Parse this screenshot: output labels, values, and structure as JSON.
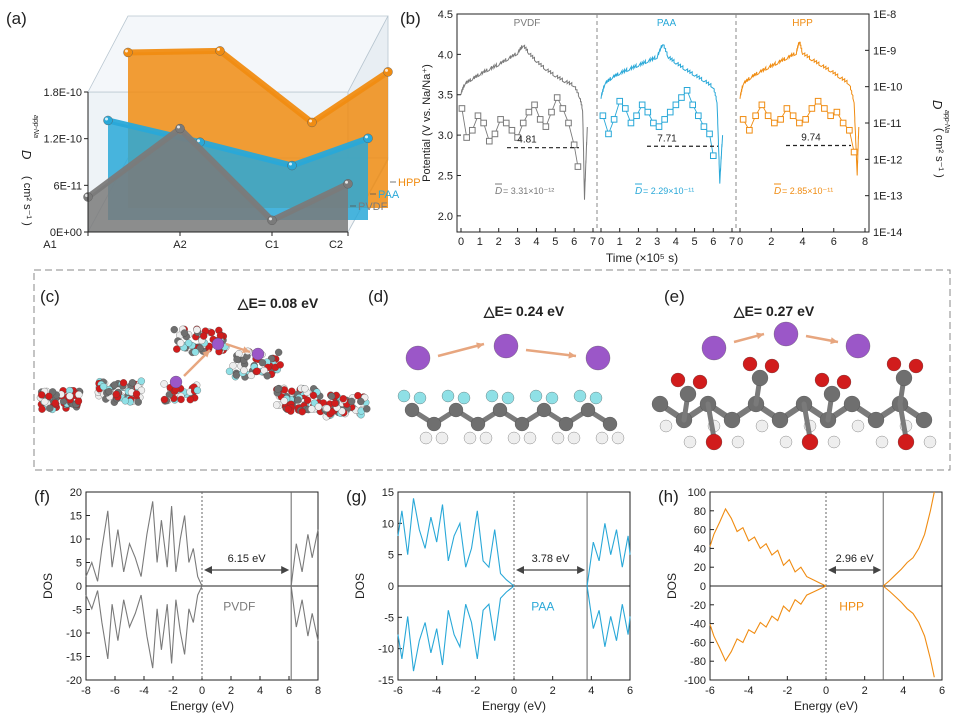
{
  "colors": {
    "pvdf": "#7a7a7a",
    "paa": "#29a8d8",
    "hpp": "#f08c12",
    "axis": "#222222",
    "dashed_box": "#888888"
  },
  "chart_data": [
    {
      "panel": "(a)",
      "type": "area",
      "categories": [
        "A1",
        "A2",
        "C1",
        "C2"
      ],
      "yticks": [
        "0E+00",
        "6E-11",
        "1.2E-10",
        "1.8E-10"
      ],
      "ylabel_main": "D",
      "ylabel_sub": "app-Na",
      "ylabel_unit": "( cm² s⁻¹ )",
      "ylim": [
        0,
        2.2e-10
      ],
      "series": [
        {
          "name": "PVDF",
          "values": [
            4.5e-11,
            1.33e-10,
            1.5e-11,
            6.2e-11
          ]
        },
        {
          "name": "PAA",
          "values": [
            1.28e-10,
            1e-10,
            7e-11,
            1.05e-10
          ]
        },
        {
          "name": "HPP",
          "values": [
            2e-10,
            2.02e-10,
            1.1e-10,
            1.75e-10
          ]
        }
      ]
    },
    {
      "panel": "(b)",
      "type": "line",
      "xlabel": "Time (×10⁵ s)",
      "ylabel_left": "Potential (V vs. Na/Na⁺)",
      "ylabel_right_main": "D",
      "ylabel_right_sub": "app-Na",
      "ylabel_right_unit": "( cm² s⁻¹ )",
      "ylim_left": [
        1.8,
        4.5
      ],
      "ylim_right_log10": [
        -14,
        -8
      ],
      "left_ticks": [
        "2.0",
        "2.5",
        "3.0",
        "3.5",
        "4.0",
        "4.5"
      ],
      "right_ticks": [
        "1E-14",
        "1E-13",
        "1E-12",
        "1E-11",
        "1E-10",
        "1E-9",
        "1E-8"
      ],
      "segments": [
        {
          "name": "PVDF",
          "xticks": [
            "0",
            "1",
            "2",
            "3",
            "4",
            "5",
            "6",
            "7"
          ],
          "xmax": 7.0,
          "avg_label": "4.81",
          "avg_log10": -11.68,
          "D_text": "D",
          "D_value": " = 3.31×10⁻¹²",
          "potential_x": [
            0,
            0.2,
            0.6,
            1.0,
            1.5,
            2.0,
            2.5,
            3.0,
            3.3,
            3.6,
            4.0,
            4.5,
            5.0,
            5.5,
            6.0,
            6.3,
            6.45,
            6.55,
            6.7
          ],
          "potential_y": [
            3.5,
            3.62,
            3.68,
            3.74,
            3.8,
            3.86,
            3.93,
            4.0,
            4.1,
            4.0,
            3.9,
            3.8,
            3.72,
            3.65,
            3.6,
            3.45,
            3.3,
            2.2,
            3.1
          ],
          "D_x": [
            0.05,
            0.3,
            0.6,
            0.9,
            1.2,
            1.5,
            1.8,
            2.1,
            2.4,
            2.7,
            3.0,
            3.3,
            3.6,
            3.9,
            4.2,
            4.5,
            4.8,
            5.1,
            5.4,
            5.7,
            6.0,
            6.2
          ],
          "D_log10": [
            -10.6,
            -11.4,
            -11.2,
            -10.8,
            -11.0,
            -11.5,
            -11.3,
            -10.9,
            -11.0,
            -11.2,
            -11.4,
            -11.0,
            -10.7,
            -10.5,
            -10.9,
            -11.1,
            -10.7,
            -10.3,
            -10.6,
            -11.0,
            -11.6,
            -12.2
          ]
        },
        {
          "name": "PAA",
          "xticks": [
            "0",
            "1",
            "2",
            "3",
            "4",
            "5",
            "6",
            "7"
          ],
          "xmax": 7.0,
          "avg_label": "7.71",
          "avg_log10": -11.64,
          "D_text": "D",
          "D_value": " = 2.29×10⁻¹¹",
          "potential_x": [
            0,
            0.2,
            0.6,
            1.0,
            1.5,
            2.0,
            2.5,
            3.0,
            3.3,
            3.6,
            4.0,
            4.5,
            5.0,
            5.5,
            6.0,
            6.2,
            6.35,
            6.5
          ],
          "potential_y": [
            3.45,
            3.62,
            3.7,
            3.75,
            3.8,
            3.85,
            3.9,
            3.95,
            4.12,
            3.95,
            3.88,
            3.8,
            3.73,
            3.66,
            3.58,
            3.4,
            2.4,
            3.0
          ],
          "D_x": [
            0.1,
            0.4,
            0.7,
            1.0,
            1.3,
            1.6,
            1.9,
            2.2,
            2.5,
            2.8,
            3.1,
            3.4,
            3.7,
            4.0,
            4.3,
            4.6,
            4.9,
            5.2,
            5.5,
            5.8,
            6.0
          ],
          "D_log10": [
            -10.8,
            -11.3,
            -10.9,
            -10.4,
            -10.6,
            -11.0,
            -10.8,
            -10.5,
            -10.7,
            -11.0,
            -11.1,
            -10.9,
            -10.7,
            -10.5,
            -10.3,
            -10.1,
            -10.5,
            -10.8,
            -11.1,
            -11.3,
            -11.9
          ]
        },
        {
          "name": "HPP",
          "xticks": [
            "0",
            "2",
            "4",
            "6",
            "8"
          ],
          "xmax": 8.0,
          "avg_label": "9.74",
          "avg_log10": -11.62,
          "D_text": "D",
          "D_value": " = 2.85×10⁻¹¹",
          "potential_x": [
            0,
            0.2,
            0.7,
            1.2,
            1.8,
            2.4,
            3.0,
            3.6,
            3.8,
            4.0,
            4.6,
            5.2,
            5.8,
            6.4,
            7.0,
            7.3,
            7.5,
            7.6
          ],
          "potential_y": [
            3.45,
            3.62,
            3.7,
            3.76,
            3.82,
            3.88,
            3.94,
            4.0,
            4.15,
            4.0,
            3.92,
            3.85,
            3.78,
            3.7,
            3.62,
            3.4,
            2.5,
            3.1
          ],
          "D_x": [
            0.2,
            0.6,
            1.0,
            1.4,
            1.8,
            2.2,
            2.6,
            3.0,
            3.4,
            3.8,
            4.2,
            4.6,
            5.0,
            5.4,
            5.8,
            6.2,
            6.6,
            7.0,
            7.3
          ],
          "D_log10": [
            -10.9,
            -11.2,
            -10.8,
            -10.5,
            -10.8,
            -11.0,
            -10.9,
            -10.6,
            -10.8,
            -11.0,
            -10.9,
            -10.6,
            -10.4,
            -10.6,
            -10.8,
            -10.7,
            -11.0,
            -11.2,
            -11.8
          ]
        }
      ]
    },
    {
      "panel": "(f)",
      "type": "line",
      "series": [
        {
          "name": "PVDF"
        }
      ],
      "label": "PVDF",
      "xlabel": "Energy (eV)",
      "ylabel": "DOS",
      "xlim": [
        -8,
        8
      ],
      "ylim": [
        -20,
        20
      ],
      "xticks": [
        "-8",
        "-6",
        "-4",
        "-2",
        "0",
        "2",
        "4",
        "6",
        "8"
      ],
      "yticks": [
        "-20",
        "-15",
        "-10",
        "-5",
        "0",
        "5",
        "10",
        "15",
        "20"
      ],
      "gap_label": "6.15 eV",
      "gap_start": 0,
      "gap_end": 6.15,
      "energy": [
        -8,
        -7.6,
        -7.2,
        -6.9,
        -6.5,
        -6.2,
        -5.8,
        -5.4,
        -5.0,
        -4.6,
        -4.2,
        -3.8,
        -3.4,
        -3.1,
        -2.8,
        -2.4,
        -2.1,
        -1.8,
        -1.5,
        -1.2,
        -0.9,
        -0.6,
        -0.3,
        0,
        6.15,
        6.5,
        6.9,
        7.3,
        7.6,
        8
      ],
      "dos": [
        2,
        5,
        1,
        8,
        16,
        4,
        12,
        3,
        9,
        6,
        2,
        11,
        18,
        5,
        14,
        4,
        17,
        3,
        10,
        15,
        5,
        8,
        2,
        0,
        0,
        9,
        3,
        11,
        6,
        12
      ]
    },
    {
      "panel": "(g)",
      "type": "line",
      "series": [
        {
          "name": "PAA"
        }
      ],
      "label": "PAA",
      "xlabel": "Energy (eV)",
      "ylabel": "DOS",
      "xlim": [
        -6,
        6
      ],
      "ylim": [
        -15,
        15
      ],
      "xticks": [
        "-6",
        "-4",
        "-2",
        "0",
        "2",
        "4",
        "6"
      ],
      "yticks": [
        "-15",
        "-10",
        "-5",
        "0",
        "5",
        "10",
        "15"
      ],
      "gap_label": "3.78 eV",
      "gap_start": 0,
      "gap_end": 3.78,
      "energy": [
        -6,
        -5.8,
        -5.5,
        -5.2,
        -4.9,
        -4.6,
        -4.3,
        -4.0,
        -3.7,
        -3.4,
        -3.1,
        -2.8,
        -2.5,
        -2.2,
        -1.9,
        -1.6,
        -1.3,
        -1.0,
        -0.7,
        -0.4,
        0,
        3.78,
        4.1,
        4.4,
        4.7,
        5.0,
        5.3,
        5.6,
        5.9,
        6
      ],
      "dos": [
        8,
        12,
        5,
        14,
        9,
        6,
        11,
        7,
        13,
        4,
        8,
        10,
        3,
        6,
        12,
        4,
        3,
        9,
        2,
        1,
        0,
        0,
        7,
        4,
        10,
        5,
        9,
        3,
        8,
        5
      ]
    },
    {
      "panel": "(h)",
      "type": "line",
      "series": [
        {
          "name": "HPP"
        }
      ],
      "label": "HPP",
      "xlabel": "Energy (eV)",
      "ylabel": "DOS",
      "xlim": [
        -6,
        6
      ],
      "ylim": [
        -100,
        100
      ],
      "xticks": [
        "-6",
        "-4",
        "-2",
        "0",
        "2",
        "4",
        "6"
      ],
      "yticks": [
        "-100",
        "-80",
        "-60",
        "-40",
        "-20",
        "0",
        "20",
        "40",
        "60",
        "80",
        "100"
      ],
      "gap_label": "2.96 eV",
      "gap_start": 0,
      "gap_end": 2.96,
      "energy": [
        -6,
        -5.8,
        -5.5,
        -5.2,
        -4.9,
        -4.6,
        -4.3,
        -4.0,
        -3.7,
        -3.4,
        -3.1,
        -2.8,
        -2.5,
        -2.2,
        -1.9,
        -1.6,
        -1.3,
        -1.0,
        -0.6,
        -0.3,
        0,
        2.96,
        3.3,
        3.6,
        3.9,
        4.2,
        4.5,
        4.8,
        5.1,
        5.4,
        5.6
      ],
      "dos": [
        42,
        55,
        68,
        82,
        72,
        58,
        62,
        48,
        52,
        40,
        45,
        33,
        38,
        22,
        28,
        15,
        20,
        10,
        6,
        3,
        0,
        0,
        6,
        12,
        18,
        25,
        30,
        40,
        55,
        80,
        100
      ]
    }
  ],
  "structures": [
    {
      "panel": "(c)",
      "energy_label": "△E= 0.08 eV"
    },
    {
      "panel": "(d)",
      "energy_label": "△E= 0.24 eV"
    },
    {
      "panel": "(e)",
      "energy_label": "△E= 0.27 eV"
    }
  ]
}
